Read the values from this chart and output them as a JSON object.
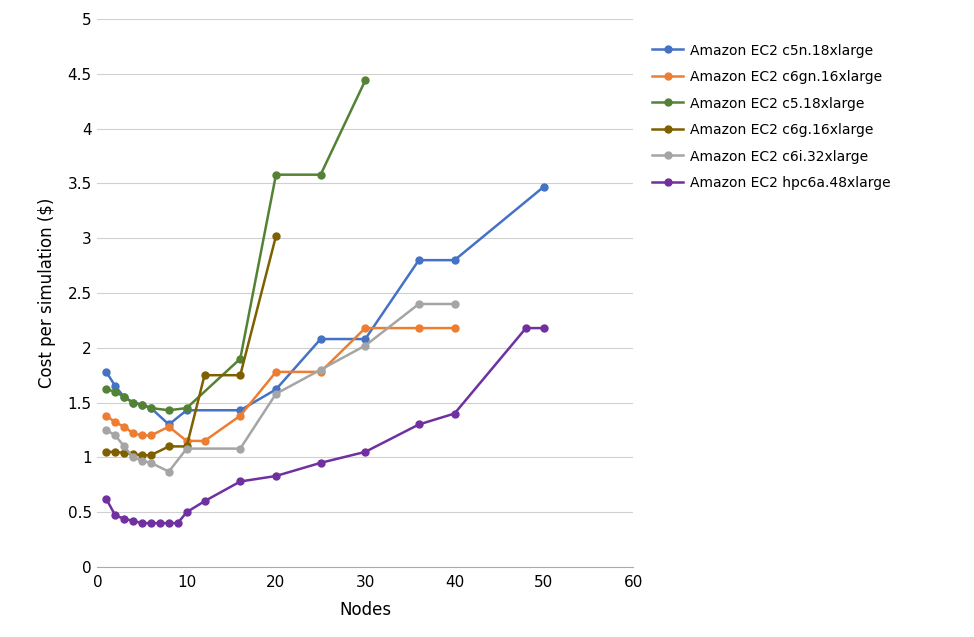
{
  "series": [
    {
      "label": "Amazon EC2 c5n.18xlarge",
      "color": "#4472C4",
      "x": [
        1,
        2,
        3,
        4,
        5,
        6,
        8,
        10,
        16,
        20,
        25,
        30,
        36,
        40,
        50
      ],
      "y": [
        1.78,
        1.65,
        1.55,
        1.5,
        1.48,
        1.45,
        1.3,
        1.43,
        1.43,
        1.62,
        2.08,
        2.08,
        2.8,
        2.8,
        3.47
      ]
    },
    {
      "label": "Amazon EC2 c6gn.16xlarge",
      "color": "#ED7D31",
      "x": [
        1,
        2,
        3,
        4,
        5,
        6,
        8,
        10,
        12,
        16,
        20,
        25,
        30,
        36,
        40
      ],
      "y": [
        1.38,
        1.32,
        1.28,
        1.22,
        1.2,
        1.2,
        1.28,
        1.15,
        1.15,
        1.38,
        1.78,
        1.78,
        2.18,
        2.18,
        2.18
      ]
    },
    {
      "label": "Amazon EC2 c5.18xlarge",
      "color": "#548235",
      "x": [
        1,
        2,
        3,
        4,
        5,
        6,
        8,
        10,
        16,
        20,
        25,
        30
      ],
      "y": [
        1.62,
        1.6,
        1.55,
        1.5,
        1.48,
        1.45,
        1.43,
        1.45,
        1.9,
        3.58,
        3.58,
        4.44
      ]
    },
    {
      "label": "Amazon EC2 c6g.16xlarge",
      "color": "#7F6000",
      "x": [
        1,
        2,
        3,
        4,
        5,
        6,
        8,
        10,
        12,
        16,
        20
      ],
      "y": [
        1.05,
        1.05,
        1.04,
        1.03,
        1.02,
        1.02,
        1.1,
        1.1,
        1.75,
        1.75,
        3.02
      ]
    },
    {
      "label": "Amazon EC2 c6i.32xlarge",
      "color": "#A5A5A5",
      "x": [
        1,
        2,
        3,
        4,
        5,
        6,
        8,
        10,
        16,
        20,
        25,
        30,
        36,
        40
      ],
      "y": [
        1.25,
        1.2,
        1.1,
        1.0,
        0.97,
        0.95,
        0.87,
        1.08,
        1.08,
        1.58,
        1.8,
        2.02,
        2.4,
        2.4
      ]
    },
    {
      "label": "Amazon EC2 hpc6a.48xlarge",
      "color": "#7030A0",
      "x": [
        1,
        2,
        3,
        4,
        5,
        6,
        7,
        8,
        9,
        10,
        12,
        16,
        20,
        25,
        30,
        36,
        40,
        48,
        50
      ],
      "y": [
        0.62,
        0.47,
        0.44,
        0.42,
        0.4,
        0.4,
        0.4,
        0.4,
        0.4,
        0.5,
        0.6,
        0.78,
        0.83,
        0.95,
        1.05,
        1.3,
        1.4,
        2.18,
        2.18
      ]
    }
  ],
  "xlabel": "Nodes",
  "ylabel": "Cost per simulation ($)",
  "xlim": [
    0,
    60
  ],
  "ylim": [
    0,
    5
  ],
  "yticks": [
    0,
    0.5,
    1,
    1.5,
    2,
    2.5,
    3,
    3.5,
    4,
    4.5,
    5
  ],
  "xticks": [
    0,
    10,
    20,
    30,
    40,
    50,
    60
  ],
  "grid_color": "#D0D0D0",
  "background_color": "#FFFFFF",
  "marker": "o",
  "marker_size": 5,
  "line_width": 1.8
}
